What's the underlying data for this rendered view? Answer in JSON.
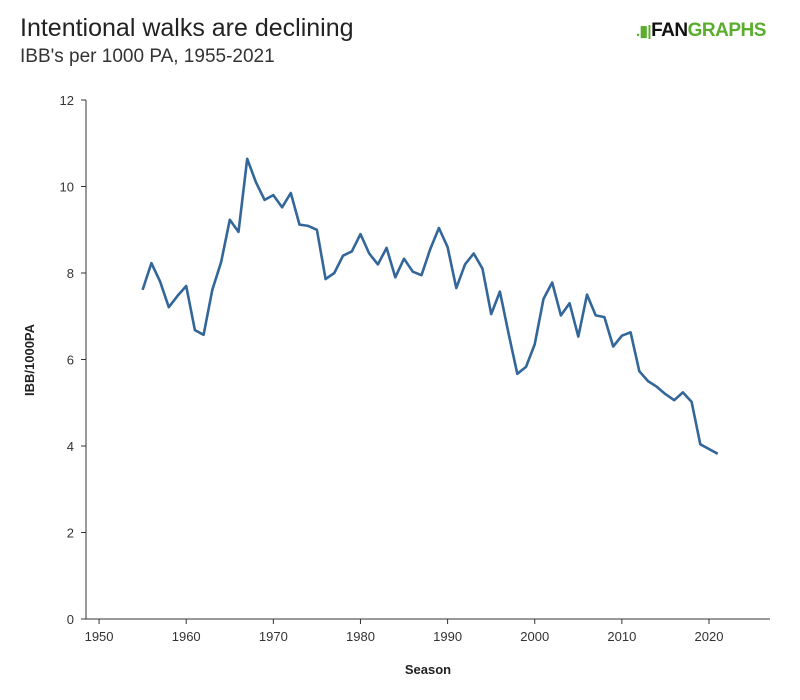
{
  "chart_data": {
    "type": "line",
    "title": "Intentional walks are declining",
    "subtitle": "IBB's per 1000 PA, 1955-2021",
    "xlabel": "Season",
    "ylabel": "IBB/1000PA",
    "xlim": [
      1948.5,
      2027
    ],
    "ylim": [
      0,
      12
    ],
    "xticks": [
      1950,
      1960,
      1970,
      1980,
      1990,
      2000,
      2010,
      2020
    ],
    "yticks": [
      0,
      2,
      4,
      6,
      8,
      10,
      12
    ],
    "grid": false,
    "line_color": "#336699",
    "x": [
      1955,
      1956,
      1957,
      1958,
      1959,
      1960,
      1961,
      1962,
      1963,
      1964,
      1965,
      1966,
      1967,
      1968,
      1969,
      1970,
      1971,
      1972,
      1973,
      1974,
      1975,
      1976,
      1977,
      1978,
      1979,
      1980,
      1981,
      1982,
      1983,
      1984,
      1985,
      1986,
      1987,
      1988,
      1989,
      1990,
      1991,
      1992,
      1993,
      1994,
      1995,
      1996,
      1997,
      1998,
      1999,
      2000,
      2001,
      2002,
      2003,
      2004,
      2005,
      2006,
      2007,
      2008,
      2009,
      2010,
      2011,
      2012,
      2013,
      2014,
      2015,
      2016,
      2017,
      2018,
      2019,
      2020,
      2021
    ],
    "values": [
      7.61,
      8.23,
      7.8,
      7.21,
      7.47,
      7.7,
      6.68,
      6.57,
      7.61,
      8.25,
      9.23,
      8.95,
      10.64,
      10.1,
      9.69,
      9.8,
      9.52,
      9.85,
      9.12,
      9.09,
      9.0,
      7.86,
      8.0,
      8.4,
      8.5,
      8.9,
      8.45,
      8.2,
      8.58,
      7.9,
      8.33,
      8.03,
      7.95,
      8.55,
      9.04,
      8.6,
      7.65,
      8.2,
      8.45,
      8.1,
      7.05,
      7.57,
      6.6,
      5.67,
      5.83,
      6.35,
      7.4,
      7.78,
      7.02,
      7.3,
      6.53,
      7.5,
      7.02,
      6.98,
      6.3,
      6.55,
      6.63,
      5.73,
      5.5,
      5.37,
      5.2,
      5.06,
      5.24,
      5.02,
      4.04,
      3.93,
      3.82
    ]
  },
  "logo": {
    "part1": "FAN",
    "part2": "GRAPHS"
  }
}
